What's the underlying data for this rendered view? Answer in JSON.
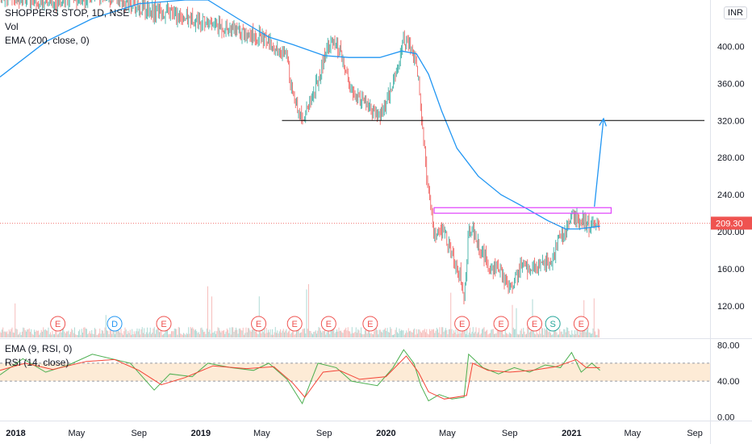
{
  "legend": {
    "symbol": "SHOPPERS STOP, 1D, NSE",
    "vol": "Vol",
    "ema": "EMA (200, close, 0)",
    "rsi_ema": "EMA (9, RSI, 0)",
    "rsi": "RSI (14, close)"
  },
  "currency": "INR",
  "last_price": "209.30",
  "chart_data": {
    "type": "candlestick",
    "title": "SHOPPERS STOP, 1D, NSE",
    "price_axis": {
      "ticks": [
        "400.00",
        "360.00",
        "320.00",
        "280.00",
        "240.00",
        "200.00",
        "160.00",
        "120.00"
      ],
      "tick_values": [
        400,
        360,
        320,
        280,
        240,
        200,
        160,
        120
      ],
      "range": [
        86,
        450
      ]
    },
    "rsi_axis": {
      "ticks": [
        "80.00",
        "40.00",
        "0.00"
      ],
      "tick_values": [
        80,
        40,
        0
      ],
      "range": [
        -4,
        86
      ],
      "band": [
        40,
        60
      ]
    },
    "time_axis": {
      "labels": [
        "2018",
        "May",
        "Sep",
        "2019",
        "May",
        "Sep",
        "2020",
        "May",
        "Sep",
        "2021",
        "May",
        "Sep"
      ],
      "bold": [
        true,
        false,
        false,
        true,
        false,
        false,
        true,
        false,
        false,
        true,
        false,
        false
      ],
      "dates": [
        "2018-01",
        "2018-05",
        "2018-09",
        "2019-01",
        "2019-05",
        "2019-09",
        "2020-01",
        "2020-05",
        "2020-09",
        "2021-01",
        "2021-05",
        "2021-09"
      ],
      "start": "2017-12",
      "end": "2021-10"
    },
    "close_path": [
      [
        "2017-12-01",
        456
      ],
      [
        "2018-03-15",
        448
      ],
      [
        "2018-06-15",
        455
      ],
      [
        "2018-09-15",
        440
      ],
      [
        "2018-12-15",
        430
      ],
      [
        "2019-03-01",
        418
      ],
      [
        "2019-05-01",
        410
      ],
      [
        "2019-06-20",
        388
      ],
      [
        "2019-07-01",
        350
      ],
      [
        "2019-07-20",
        322
      ],
      [
        "2019-08-15",
        355
      ],
      [
        "2019-09-10",
        405
      ],
      [
        "2019-10-01",
        395
      ],
      [
        "2019-10-25",
        350
      ],
      [
        "2019-11-20",
        340
      ],
      [
        "2019-12-15",
        322
      ],
      [
        "2020-01-01",
        335
      ],
      [
        "2020-01-25",
        380
      ],
      [
        "2020-02-05",
        410
      ],
      [
        "2020-02-20",
        395
      ],
      [
        "2020-03-05",
        370
      ],
      [
        "2020-03-12",
        320
      ],
      [
        "2020-03-20",
        268
      ],
      [
        "2020-03-28",
        225
      ],
      [
        "2020-04-05",
        195
      ],
      [
        "2020-04-25",
        200
      ],
      [
        "2020-05-10",
        175
      ],
      [
        "2020-05-25",
        155
      ],
      [
        "2020-06-03",
        128
      ],
      [
        "2020-06-12",
        200
      ],
      [
        "2020-06-18",
        205
      ],
      [
        "2020-07-01",
        185
      ],
      [
        "2020-07-20",
        165
      ],
      [
        "2020-08-10",
        158
      ],
      [
        "2020-08-25",
        145
      ],
      [
        "2020-09-10",
        145
      ],
      [
        "2020-09-25",
        165
      ],
      [
        "2020-10-10",
        160
      ],
      [
        "2020-10-25",
        158
      ],
      [
        "2020-11-10",
        166
      ],
      [
        "2020-11-25",
        172
      ],
      [
        "2020-12-10",
        195
      ],
      [
        "2020-12-22",
        200
      ],
      [
        "2021-01-01",
        220
      ],
      [
        "2021-01-15",
        212
      ],
      [
        "2021-01-30",
        208
      ],
      [
        "2021-02-12",
        205
      ],
      [
        "2021-02-26",
        209.3
      ]
    ],
    "ema200_path": [
      [
        "2017-12-01",
        367
      ],
      [
        "2018-03-01",
        405
      ],
      [
        "2018-06-01",
        430
      ],
      [
        "2018-09-01",
        446
      ],
      [
        "2018-12-01",
        450
      ],
      [
        "2019-01-15",
        450
      ],
      [
        "2019-03-15",
        430
      ],
      [
        "2019-05-15",
        410
      ],
      [
        "2019-07-01",
        402
      ],
      [
        "2019-09-01",
        390
      ],
      [
        "2019-10-20",
        388
      ],
      [
        "2019-12-20",
        388
      ],
      [
        "2020-02-01",
        395
      ],
      [
        "2020-03-01",
        392
      ],
      [
        "2020-03-25",
        370
      ],
      [
        "2020-04-20",
        330
      ],
      [
        "2020-05-20",
        290
      ],
      [
        "2020-07-01",
        260
      ],
      [
        "2020-08-15",
        240
      ],
      [
        "2020-10-01",
        226
      ],
      [
        "2020-11-15",
        212
      ],
      [
        "2020-12-20",
        203
      ],
      [
        "2021-01-15",
        203
      ],
      [
        "2021-02-26",
        206
      ]
    ],
    "rsi_path": [
      [
        "2017-12-01",
        47
      ],
      [
        "2018-01-15",
        65
      ],
      [
        "2018-03-01",
        50
      ],
      [
        "2018-04-15",
        58
      ],
      [
        "2018-06-01",
        70
      ],
      [
        "2018-08-15",
        60
      ],
      [
        "2018-10-01",
        30
      ],
      [
        "2018-11-01",
        48
      ],
      [
        "2018-12-15",
        45
      ],
      [
        "2019-01-15",
        60
      ],
      [
        "2019-03-01",
        55
      ],
      [
        "2019-04-15",
        52
      ],
      [
        "2019-05-15",
        60
      ],
      [
        "2019-06-20",
        42
      ],
      [
        "2019-07-20",
        15
      ],
      [
        "2019-08-20",
        60
      ],
      [
        "2019-09-25",
        55
      ],
      [
        "2019-10-25",
        40
      ],
      [
        "2019-12-15",
        35
      ],
      [
        "2020-01-15",
        55
      ],
      [
        "2020-02-05",
        75
      ],
      [
        "2020-02-25",
        60
      ],
      [
        "2020-03-10",
        35
      ],
      [
        "2020-03-25",
        18
      ],
      [
        "2020-04-15",
        25
      ],
      [
        "2020-05-10",
        20
      ],
      [
        "2020-06-03",
        22
      ],
      [
        "2020-06-12",
        70
      ],
      [
        "2020-07-10",
        55
      ],
      [
        "2020-08-10",
        48
      ],
      [
        "2020-09-10",
        55
      ],
      [
        "2020-10-10",
        50
      ],
      [
        "2020-11-10",
        58
      ],
      [
        "2020-12-10",
        55
      ],
      [
        "2021-01-01",
        72
      ],
      [
        "2021-01-20",
        50
      ],
      [
        "2021-02-10",
        60
      ],
      [
        "2021-02-26",
        52
      ]
    ],
    "rsi_ema_path": [
      [
        "2017-12-01",
        52
      ],
      [
        "2018-01-20",
        60
      ],
      [
        "2018-03-15",
        53
      ],
      [
        "2018-05-20",
        62
      ],
      [
        "2018-07-15",
        64
      ],
      [
        "2018-09-01",
        52
      ],
      [
        "2018-10-15",
        36
      ],
      [
        "2018-12-01",
        44
      ],
      [
        "2019-01-25",
        57
      ],
      [
        "2019-04-01",
        54
      ],
      [
        "2019-05-25",
        56
      ],
      [
        "2019-07-01",
        38
      ],
      [
        "2019-07-25",
        22
      ],
      [
        "2019-08-30",
        50
      ],
      [
        "2019-10-01",
        52
      ],
      [
        "2019-11-10",
        42
      ],
      [
        "2020-01-01",
        45
      ],
      [
        "2020-02-10",
        68
      ],
      [
        "2020-03-05",
        50
      ],
      [
        "2020-03-25",
        28
      ],
      [
        "2020-04-25",
        20
      ],
      [
        "2020-06-08",
        24
      ],
      [
        "2020-06-20",
        60
      ],
      [
        "2020-07-20",
        52
      ],
      [
        "2020-09-01",
        50
      ],
      [
        "2020-10-15",
        52
      ],
      [
        "2020-12-01",
        56
      ],
      [
        "2021-01-10",
        64
      ],
      [
        "2021-01-30",
        55
      ],
      [
        "2021-02-26",
        55
      ]
    ],
    "levels": [
      {
        "kind": "horizontal_line",
        "value": 320,
        "from": "2019-06-10",
        "to": "2021-09-20",
        "color": "#000000"
      }
    ],
    "rectangles": [
      {
        "from": "2020-04-05",
        "to": "2021-03-20",
        "top": 226,
        "bottom": 220,
        "color": "#e040fb"
      }
    ],
    "arrow": {
      "from": [
        "2021-02-15",
        227
      ],
      "to": [
        "2021-03-05",
        322
      ],
      "color": "#2196f3"
    },
    "events": [
      {
        "label": "E",
        "date": "2018-03-25",
        "color": "#ef5350"
      },
      {
        "label": "D",
        "date": "2018-07-15",
        "color": "#2196f3"
      },
      {
        "label": "E",
        "date": "2018-10-20",
        "color": "#ef5350"
      },
      {
        "label": "E",
        "date": "2019-04-25",
        "color": "#ef5350"
      },
      {
        "label": "E",
        "date": "2019-07-05",
        "color": "#ef5350"
      },
      {
        "label": "E",
        "date": "2019-09-10",
        "color": "#ef5350"
      },
      {
        "label": "E",
        "date": "2019-12-01",
        "color": "#ef5350"
      },
      {
        "label": "E",
        "date": "2020-05-30",
        "color": "#ef5350"
      },
      {
        "label": "E",
        "date": "2020-08-15",
        "color": "#ef5350"
      },
      {
        "label": "E",
        "date": "2020-10-20",
        "color": "#ef5350"
      },
      {
        "label": "S",
        "date": "2020-11-25",
        "color": "#26a69a"
      },
      {
        "label": "E",
        "date": "2021-01-20",
        "color": "#ef5350"
      }
    ],
    "colors": {
      "up": "#26a69a",
      "down": "#ef5350",
      "ema": "#2196f3",
      "rsi": "#4caf50",
      "rsi_ema": "#f44336",
      "rsi_band": "#fdebd6",
      "last_price": "#ef5350"
    }
  }
}
